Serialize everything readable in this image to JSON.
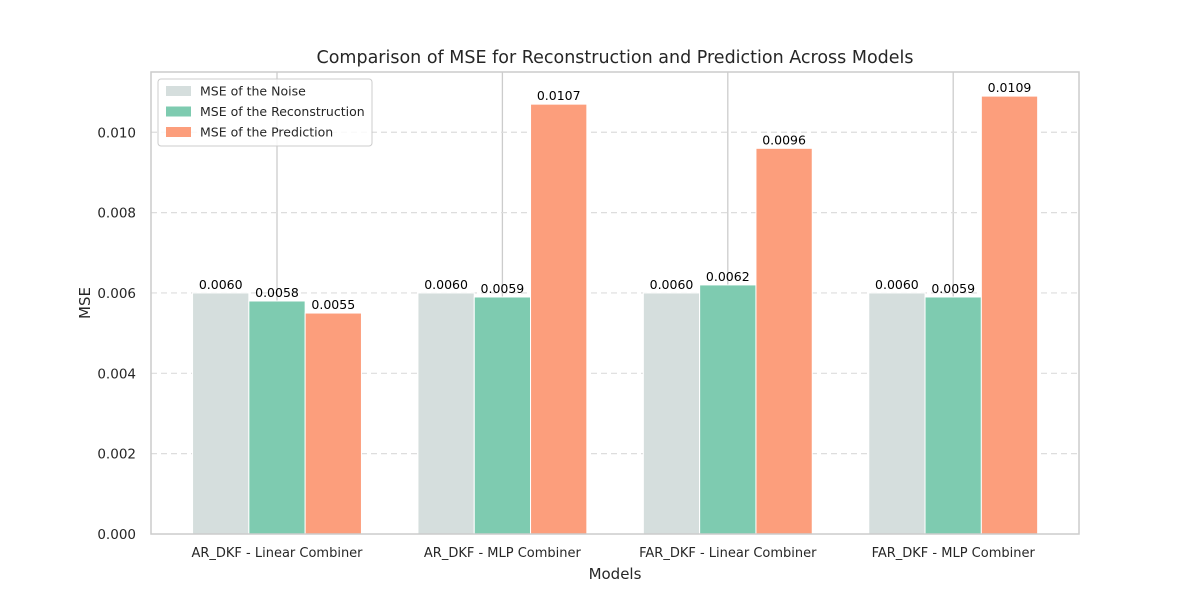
{
  "chart_data": {
    "type": "bar",
    "title": "Comparison of MSE for Reconstruction and Prediction Across Models",
    "xlabel": "Models",
    "ylabel": "MSE",
    "ylim": [
      0,
      0.0115
    ],
    "yticks": [
      "0.000",
      "0.002",
      "0.004",
      "0.006",
      "0.008",
      "0.010"
    ],
    "grid": true,
    "legend_position": "upper-left",
    "categories": [
      "AR_DKF - Linear Combiner",
      "AR_DKF - MLP Combiner",
      "FAR_DKF - Linear Combiner",
      "FAR_DKF - MLP Combiner"
    ],
    "series": [
      {
        "name": "MSE of the Noise",
        "color": "#d5dedd",
        "values": [
          0.006,
          0.006,
          0.006,
          0.006
        ],
        "labels": [
          "0.0060",
          "0.0060",
          "0.0060",
          "0.0060"
        ]
      },
      {
        "name": "MSE of the Reconstruction",
        "color": "#7ecbb0",
        "values": [
          0.0058,
          0.0059,
          0.0062,
          0.0059
        ],
        "labels": [
          "0.0058",
          "0.0059",
          "0.0062",
          "0.0059"
        ]
      },
      {
        "name": "MSE of the Prediction",
        "color": "#fc9e7c",
        "values": [
          0.0055,
          0.0107,
          0.0096,
          0.0109
        ],
        "labels": [
          "0.0055",
          "0.0107",
          "0.0096",
          "0.0109"
        ]
      }
    ]
  }
}
